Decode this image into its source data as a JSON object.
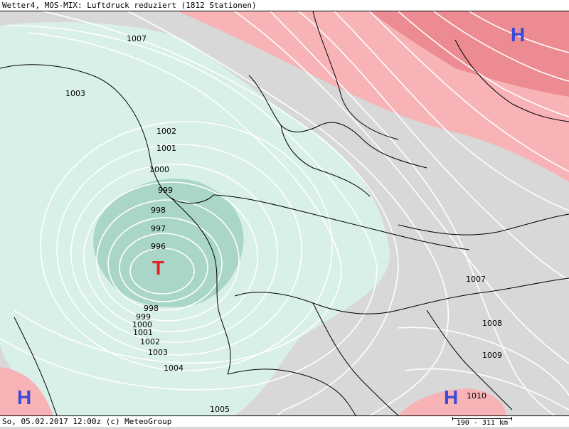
{
  "header": {
    "title": "Wetter4, MOS-MIX: Luftdruck reduziert (1812 Stationen)"
  },
  "footer": {
    "timestamp": "So, 05.02.2017 12:00z (c) MeteoGroup",
    "scale": "190 - 311 km"
  },
  "pressure_centers": [
    {
      "type": "H",
      "color": "#3b49d6"
    },
    {
      "type": "T",
      "color": "#e8202a"
    },
    {
      "type": "H",
      "color": "#3b49d6"
    },
    {
      "type": "H",
      "color": "#3b49d6"
    }
  ],
  "isobar_labels": [
    "1007",
    "1003",
    "1002",
    "1001",
    "1000",
    "999",
    "998",
    "997",
    "996",
    "998",
    "999",
    "1000",
    "1001",
    "1002",
    "1003",
    "1004",
    "1005",
    "1007",
    "1008",
    "1009",
    "1010"
  ],
  "colors": {
    "low_fill": "#d9efe9",
    "low_core": "#a9d6c9",
    "neutral": "#d8d8d8",
    "high_fill": "#f7b3b6",
    "high_core": "#ec8b91"
  }
}
